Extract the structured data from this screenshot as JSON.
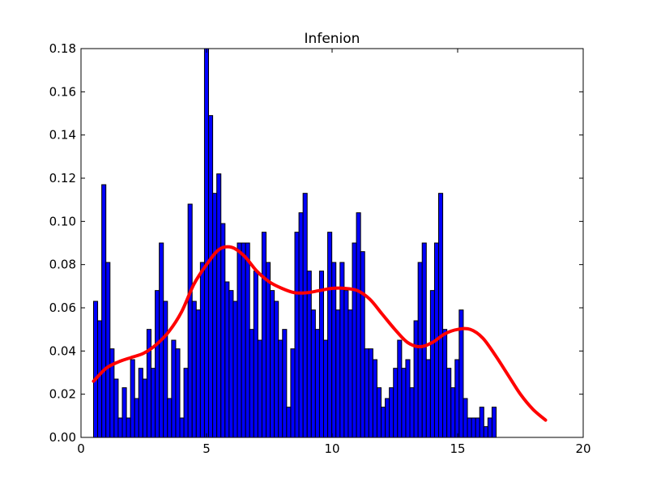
{
  "chart_data": {
    "type": "bar",
    "title": "Infenion",
    "xlabel": "",
    "ylabel": "",
    "xlim": [
      0,
      20
    ],
    "ylim": [
      0,
      0.18
    ],
    "xticks": [
      0,
      5,
      10,
      15,
      20
    ],
    "xtick_labels": [
      "0",
      "5",
      "10",
      "15",
      "20"
    ],
    "yticks": [
      0,
      0.02,
      0.04,
      0.06,
      0.08,
      0.1,
      0.12,
      0.14,
      0.16,
      0.18
    ],
    "ytick_labels": [
      "0.00",
      "0.02",
      "0.04",
      "0.06",
      "0.08",
      "0.10",
      "0.12",
      "0.14",
      "0.16",
      "0.18"
    ],
    "grid": false,
    "bar_color": "#0000ff",
    "bar_edge_color": "#000000",
    "curve_color": "#ff0000",
    "bins": {
      "start": 0.5,
      "width": 0.1636,
      "values": [
        0.063,
        0.054,
        0.117,
        0.081,
        0.041,
        0.027,
        0.009,
        0.023,
        0.009,
        0.036,
        0.018,
        0.032,
        0.027,
        0.05,
        0.032,
        0.068,
        0.09,
        0.063,
        0.018,
        0.045,
        0.041,
        0.009,
        0.032,
        0.108,
        0.063,
        0.059,
        0.081,
        0.18,
        0.149,
        0.113,
        0.122,
        0.099,
        0.072,
        0.068,
        0.063,
        0.09,
        0.09,
        0.09,
        0.05,
        0.077,
        0.045,
        0.095,
        0.081,
        0.068,
        0.063,
        0.045,
        0.05,
        0.014,
        0.041,
        0.095,
        0.104,
        0.113,
        0.077,
        0.059,
        0.05,
        0.077,
        0.045,
        0.095,
        0.081,
        0.059,
        0.081,
        0.068,
        0.059,
        0.09,
        0.104,
        0.086,
        0.041,
        0.041,
        0.036,
        0.023,
        0.014,
        0.018,
        0.023,
        0.032,
        0.045,
        0.032,
        0.036,
        0.023,
        0.054,
        0.081,
        0.09,
        0.036,
        0.068,
        0.09,
        0.113,
        0.05,
        0.032,
        0.023,
        0.036,
        0.059,
        0.018,
        0.009,
        0.009,
        0.009,
        0.014,
        0.005,
        0.009,
        0.014
      ]
    },
    "series": [
      {
        "type": "line",
        "x": [
          0.5,
          1.0,
          1.5,
          2.0,
          2.5,
          3.0,
          3.5,
          4.0,
          4.5,
          5.0,
          5.5,
          6.0,
          6.5,
          7.0,
          7.5,
          8.0,
          8.5,
          9.0,
          9.5,
          10.0,
          10.5,
          11.0,
          11.5,
          12.0,
          12.5,
          13.0,
          13.5,
          14.0,
          14.5,
          15.0,
          15.5,
          16.0,
          16.5,
          17.0,
          17.5,
          18.0,
          18.5
        ],
        "y": [
          0.026,
          0.032,
          0.035,
          0.037,
          0.039,
          0.043,
          0.049,
          0.058,
          0.071,
          0.08,
          0.087,
          0.088,
          0.084,
          0.077,
          0.072,
          0.069,
          0.067,
          0.067,
          0.068,
          0.069,
          0.069,
          0.068,
          0.064,
          0.057,
          0.05,
          0.044,
          0.042,
          0.044,
          0.048,
          0.05,
          0.05,
          0.046,
          0.038,
          0.029,
          0.02,
          0.013,
          0.008
        ]
      }
    ]
  }
}
